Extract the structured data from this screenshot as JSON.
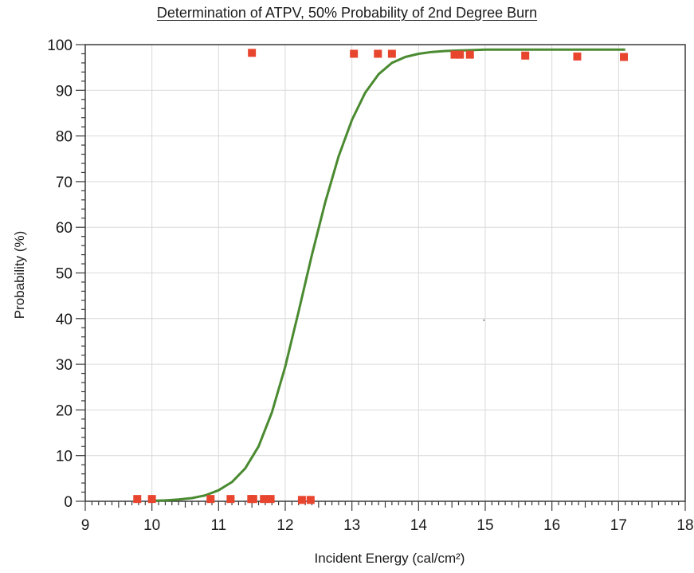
{
  "chart_data": {
    "type": "scatter",
    "title": "Determination of ATPV, 50% Probability of 2nd Degree Burn",
    "xlabel": "Incident Energy (cal/cm²)",
    "ylabel": "Probability (%)",
    "xlim": [
      9,
      18
    ],
    "ylim": [
      0,
      100
    ],
    "x_ticks": [
      9,
      10,
      11,
      12,
      13,
      14,
      15,
      16,
      17,
      18
    ],
    "y_ticks": [
      0,
      10,
      20,
      30,
      40,
      50,
      60,
      70,
      80,
      90,
      100
    ],
    "grid": true,
    "legend": "none",
    "series": [
      {
        "type": "scatter",
        "color": "#e8452f",
        "marker": "square",
        "x": [
          9.78,
          10.0,
          10.88,
          11.18,
          11.49,
          11.52,
          11.68,
          11.78,
          12.25,
          12.38,
          11.5,
          13.03,
          13.39,
          13.6,
          14.54,
          14.62,
          14.77,
          15.6,
          16.38,
          17.08
        ],
        "y": [
          0.5,
          0.5,
          0.5,
          0.5,
          0.5,
          0.5,
          0.5,
          0.5,
          0.3,
          0.3,
          98.2,
          98.0,
          98.0,
          98.0,
          97.8,
          97.8,
          97.8,
          97.6,
          97.4,
          97.3
        ]
      },
      {
        "type": "line",
        "color": "#4a8a30",
        "x": [
          10.0,
          10.2,
          10.4,
          10.6,
          10.8,
          11.0,
          11.2,
          11.4,
          11.6,
          11.8,
          12.0,
          12.2,
          12.4,
          12.6,
          12.8,
          13.0,
          13.2,
          13.4,
          13.6,
          13.8,
          14.0,
          14.2,
          14.4,
          14.6,
          14.8,
          15.0,
          15.2,
          15.6,
          16.0,
          16.5,
          17.0,
          17.1
        ],
        "y": [
          0.1,
          0.2,
          0.4,
          0.7,
          1.3,
          2.4,
          4.2,
          7.2,
          12.0,
          19.5,
          29.5,
          41.5,
          54.0,
          65.5,
          75.5,
          83.5,
          89.5,
          93.5,
          96.0,
          97.3,
          98.0,
          98.4,
          98.6,
          98.7,
          98.8,
          98.9,
          98.9,
          98.9,
          98.9,
          98.9,
          98.9,
          98.9
        ]
      }
    ],
    "annotations": [
      {
        "x": 14.98,
        "y": 39.0,
        "text": "·"
      }
    ]
  }
}
